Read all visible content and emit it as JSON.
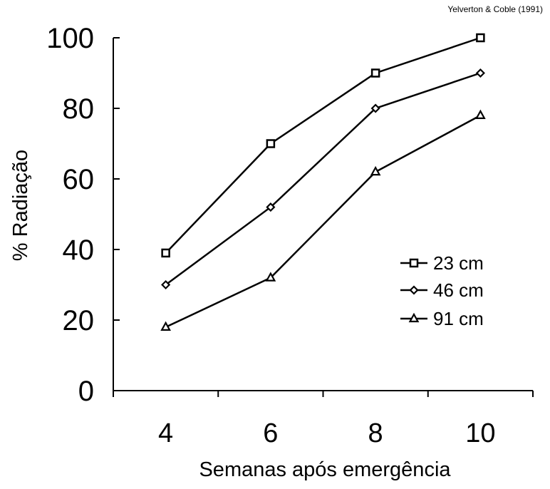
{
  "source_note": "Yelverton & Coble (1991)",
  "chart_data": {
    "type": "line",
    "xlabel": "Semanas após emergência",
    "ylabel": "% Radiação",
    "x": [
      4,
      6,
      8,
      10
    ],
    "x_tick_labels": [
      "4",
      "6",
      "8",
      "10"
    ],
    "xlim": [
      3,
      11
    ],
    "ylim": [
      0,
      100
    ],
    "y_ticks": [
      0,
      20,
      40,
      60,
      80,
      100
    ],
    "y_tick_labels": [
      "0",
      "20",
      "40",
      "60",
      "80",
      "100"
    ],
    "grid": false,
    "legend_position": "center-right",
    "series": [
      {
        "name": "23 cm",
        "marker": "square",
        "values": [
          39,
          70,
          90,
          100
        ]
      },
      {
        "name": "46 cm",
        "marker": "diamond",
        "values": [
          30,
          52,
          80,
          90
        ]
      },
      {
        "name": "91 cm",
        "marker": "triangle",
        "values": [
          18,
          32,
          62,
          78
        ]
      }
    ]
  }
}
